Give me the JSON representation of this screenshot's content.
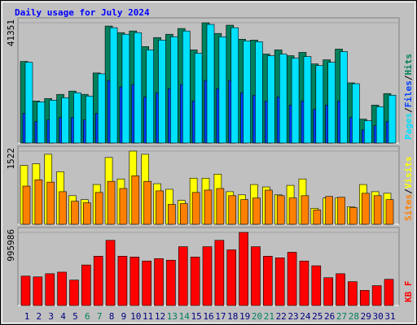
{
  "chart_data": [
    {
      "type": "bar",
      "title": "Daily usage for July 2024",
      "legend_separator": "/",
      "ylim": [
        0,
        41351
      ],
      "yticks": [
        41351
      ],
      "series": [
        {
          "name": "Hits",
          "color": "#00805c",
          "values": [
            28040,
            14445,
            15295,
            16711,
            17844,
            16711,
            24075,
            40219,
            37953,
            38520,
            33138,
            36254,
            37387,
            39370,
            32006,
            41351,
            37670,
            40504,
            35688,
            35404,
            30590,
            32006,
            30023,
            31156,
            27190,
            28607,
            32289,
            20676,
            8214,
            13029,
            16994
          ]
        },
        {
          "name": "Files",
          "color": "#0040ff",
          "values": [
            10195,
            7363,
            7930,
            8779,
            8779,
            7930,
            10195,
            21523,
            19258,
            20107,
            15859,
            17275,
            18691,
            20107,
            14443,
            21523,
            18691,
            21523,
            17275,
            16426,
            14443,
            15859,
            13027,
            14443,
            11611,
            13027,
            14443,
            8779,
            4531,
            5947,
            7363
          ]
        },
        {
          "name": "Pages",
          "color": "#00e0ff",
          "values": [
            27754,
            14160,
            14726,
            15576,
            17275,
            16142,
            23789,
            39648,
            37382,
            37949,
            32002,
            35400,
            36533,
            38515,
            30869,
            40781,
            36533,
            39648,
            35117,
            34834,
            30019,
            30586,
            29170,
            29736,
            26621,
            27754,
            31435,
            20390,
            7646,
            12461,
            16426
          ]
        }
      ]
    },
    {
      "type": "bar",
      "legend_separator": "/",
      "ylim": [
        0,
        1522
      ],
      "yticks": [
        1522
      ],
      "series": [
        {
          "name": "Visits",
          "color": "#ffff00",
          "values": [
            1224,
            1257,
            1456,
            1092,
            595,
            513,
            827,
            1389,
            943,
            1522,
            1456,
            844,
            728,
            496,
            959,
            959,
            1042,
            678,
            612,
            827,
            777,
            612,
            810,
            943,
            331,
            546,
            546,
            364,
            827,
            678,
            645
          ]
        },
        {
          "name": "Sites",
          "color": "#ff8000",
          "values": [
            794,
            926,
            877,
            678,
            480,
            447,
            662,
            893,
            744,
            1009,
            893,
            695,
            414,
            430,
            662,
            711,
            744,
            595,
            513,
            546,
            711,
            595,
            546,
            595,
            298,
            579,
            562,
            347,
            645,
            595,
            513
          ]
        }
      ]
    },
    {
      "type": "bar",
      "ylim": [
        0,
        995986
      ],
      "yticks": [
        995986
      ],
      "categories": [
        "1",
        "2",
        "3",
        "4",
        "5",
        "6",
        "7",
        "8",
        "9",
        "10",
        "11",
        "12",
        "13",
        "14",
        "15",
        "16",
        "17",
        "18",
        "19",
        "20",
        "21",
        "22",
        "23",
        "24",
        "25",
        "26",
        "27",
        "28",
        "29",
        "30",
        "31"
      ],
      "category_colors": [
        "#000080",
        "#000080",
        "#000080",
        "#000080",
        "#000080",
        "#00805c",
        "#00805c",
        "#000080",
        "#000080",
        "#000080",
        "#000080",
        "#000080",
        "#00805c",
        "#00805c",
        "#000080",
        "#000080",
        "#000080",
        "#000080",
        "#000080",
        "#00805c",
        "#00805c",
        "#000080",
        "#000080",
        "#000080",
        "#000080",
        "#000080",
        "#00805c",
        "#00805c",
        "#000080",
        "#000080",
        "#000080"
      ],
      "series": [
        {
          "name": "KB F",
          "color": "#ff0000",
          "values": [
            400562,
            389736,
            433040,
            454692,
            346432,
            552126,
            671212,
            887732,
            671212,
            660386,
            606256,
            638734,
            617082,
            801124,
            660386,
            801124,
            887732,
            757820,
            995986,
            801124,
            671212,
            649560,
            725342,
            606256,
            541300,
            378910,
            433040,
            324780,
            205694,
            270650,
            357258
          ]
        }
      ]
    }
  ]
}
